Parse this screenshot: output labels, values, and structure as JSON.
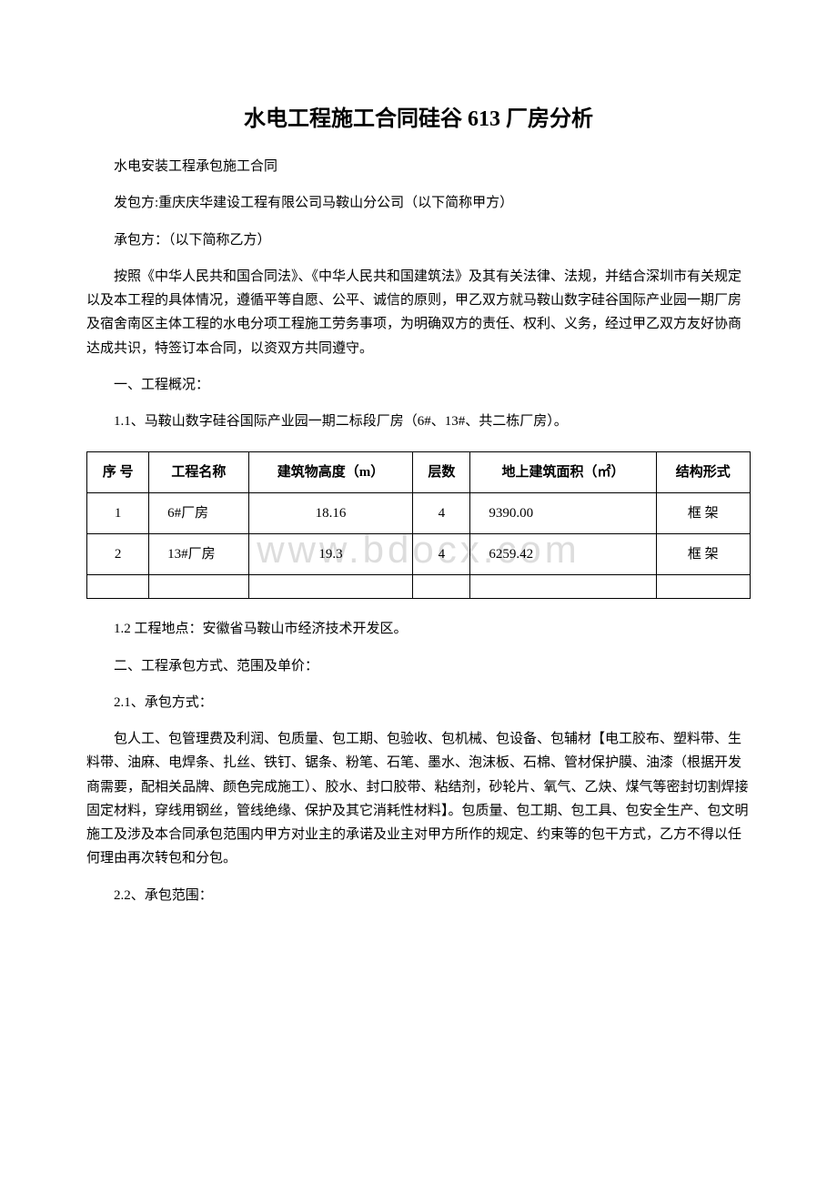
{
  "watermark": "www.bdocx.com",
  "title": "水电工程施工合同硅谷 613 厂房分析",
  "p1": "水电安装工程承包施工合同",
  "p2": "发包方:重庆庆华建设工程有限公司马鞍山分公司（以下简称甲方）",
  "p3": "承包方：（以下简称乙方）",
  "p4": "按照《中华人民共和国合同法》、《中华人民共和国建筑法》及其有关法律、法规，并结合深圳市有关规定以及本工程的具体情况，遵循平等自愿、公平、诚信的原则，甲乙双方就马鞍山数字硅谷国际产业园一期厂房及宿舍南区主体工程的水电分项工程施工劳务事项，为明确双方的责任、权利、义务，经过甲乙双方友好协商达成共识，特签订本合同，以资双方共同遵守。",
  "p5": "一、工程概况：",
  "p6": "1.1、马鞍山数字硅谷国际产业园一期二标段厂房（6#、13#、共二栋厂房）。",
  "table": {
    "columns": [
      "序 号",
      "工程名称",
      "建筑物高度（m）",
      "层数",
      "地上建筑面积（㎡）",
      "结构形式"
    ],
    "rows": [
      [
        "1",
        "6#厂房",
        "18.16",
        "4",
        "9390.00",
        "框 架"
      ],
      [
        "2",
        "13#厂房",
        "19.3",
        "4",
        "6259.42",
        "框 架"
      ],
      [
        "",
        "",
        "",
        "",
        "",
        ""
      ]
    ]
  },
  "p7": "1.2 工程地点：安徽省马鞍山市经济技术开发区。",
  "p8": "二、工程承包方式、范围及单价：",
  "p9": "2.1、承包方式：",
  "p10": "包人工、包管理费及利润、包质量、包工期、包验收、包机械、包设备、包辅材【电工胶布、塑料带、生料带、油麻、电焊条、扎丝、铁钉、锯条、粉笔、石笔、墨水、泡沫板、石棉、管材保护膜、油漆（根据开发商需要，配相关品牌、颜色完成施工）、胶水、封口胶带、粘结剂，砂轮片、氧气、乙炔、煤气等密封切割焊接固定材料，穿线用钢丝，管线绝缘、保护及其它消耗性材料】。包质量、包工期、包工具、包安全生产、包文明施工及涉及本合同承包范围内甲方对业主的承诺及业主对甲方所作的规定、约束等的包干方式，乙方不得以任何理由再次转包和分包。",
  "p11": "2.2、承包范围："
}
